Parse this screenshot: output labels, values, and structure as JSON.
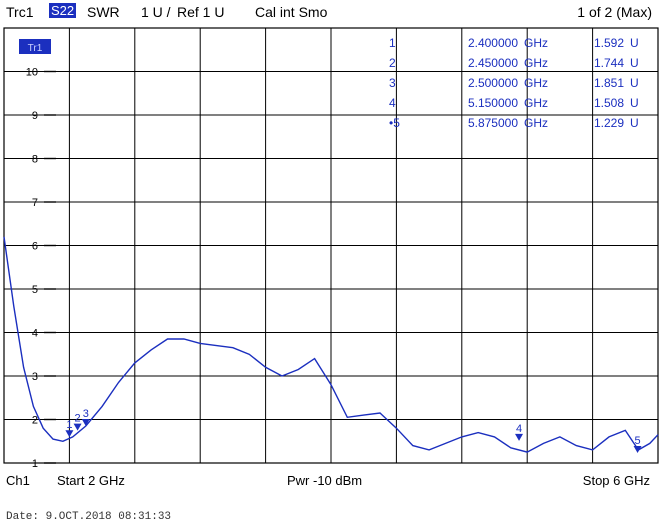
{
  "header": {
    "trace": "Trc1",
    "parameter": "S22",
    "format": "SWR",
    "scale": "1 U /",
    "ref": "Ref 1 U",
    "cal": "Cal int Smo",
    "page": "1 of 2 (Max)"
  },
  "trace_badge": "Tr1",
  "colors": {
    "trace": "#1b2fbf",
    "grid": "#000000",
    "badge": "#1b2fbf"
  },
  "markers": [
    {
      "num": "1",
      "freq": "2.400000",
      "unit": "GHz",
      "value": "1.592",
      "vunit": "U"
    },
    {
      "num": "2",
      "freq": "2.450000",
      "unit": "GHz",
      "value": "1.744",
      "vunit": "U"
    },
    {
      "num": "3",
      "freq": "2.500000",
      "unit": "GHz",
      "value": "1.851",
      "vunit": "U"
    },
    {
      "num": "4",
      "freq": "5.150000",
      "unit": "GHz",
      "value": "1.508",
      "vunit": "U"
    },
    {
      "num": "•5",
      "freq": "5.875000",
      "unit": "GHz",
      "value": "1.229",
      "vunit": "U"
    }
  ],
  "footer": {
    "channel": "Ch1",
    "start": "Start  2 GHz",
    "power": "Pwr  -10 dBm",
    "stop": "Stop  6 GHz"
  },
  "date": "Date: 9.OCT.2018  08:31:33",
  "chart_data": {
    "type": "line",
    "title": "",
    "xlabel": "",
    "ylabel": "",
    "xlim": [
      2,
      6
    ],
    "ylim": [
      1,
      11
    ],
    "yticks": [
      1,
      2,
      3,
      4,
      5,
      6,
      7,
      8,
      9,
      10
    ],
    "ytick_labels": [
      "1",
      "2",
      "3",
      "4",
      "5",
      "6",
      "7",
      "8",
      "9",
      "10"
    ],
    "grid": true,
    "series": [
      {
        "x": [
          2.0,
          2.06,
          2.12,
          2.18,
          2.24,
          2.3,
          2.36,
          2.42,
          2.5,
          2.6,
          2.7,
          2.8,
          2.9,
          3.0,
          3.1,
          3.2,
          3.3,
          3.4,
          3.5,
          3.6,
          3.7,
          3.8,
          3.9,
          4.0,
          4.1,
          4.2,
          4.3,
          4.4,
          4.5,
          4.6,
          4.7,
          4.8,
          4.9,
          5.0,
          5.1,
          5.2,
          5.3,
          5.4,
          5.5,
          5.6,
          5.7,
          5.8,
          5.88,
          5.95,
          6.0
        ],
        "y": [
          6.2,
          4.6,
          3.2,
          2.3,
          1.8,
          1.55,
          1.5,
          1.6,
          1.85,
          2.3,
          2.85,
          3.3,
          3.6,
          3.85,
          3.85,
          3.75,
          3.7,
          3.65,
          3.5,
          3.2,
          3.0,
          3.15,
          3.4,
          2.8,
          2.05,
          2.1,
          2.15,
          1.8,
          1.4,
          1.3,
          1.45,
          1.6,
          1.7,
          1.6,
          1.35,
          1.25,
          1.45,
          1.6,
          1.4,
          1.3,
          1.6,
          1.75,
          1.3,
          1.45,
          1.65
        ]
      }
    ],
    "markers": [
      {
        "label": "1",
        "x": 2.4,
        "y": 1.592
      },
      {
        "label": "2",
        "x": 2.45,
        "y": 1.744
      },
      {
        "label": "3",
        "x": 2.5,
        "y": 1.851
      },
      {
        "label": "4",
        "x": 5.15,
        "y": 1.508
      },
      {
        "label": "5",
        "x": 5.875,
        "y": 1.229
      }
    ]
  }
}
